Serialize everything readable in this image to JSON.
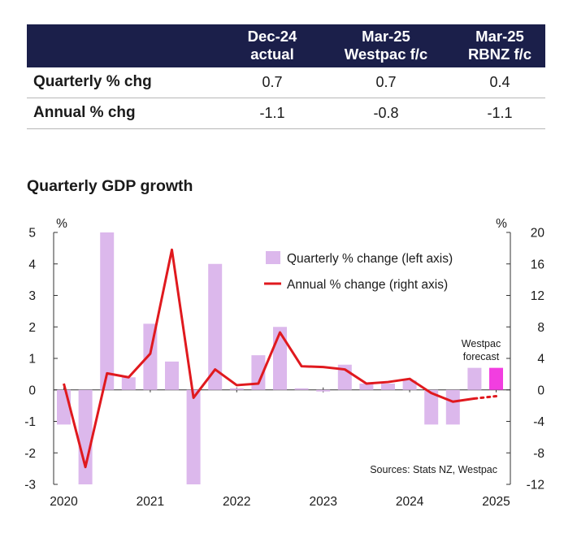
{
  "table": {
    "headers": [
      {
        "line1": "Dec-24",
        "line2": "actual"
      },
      {
        "line1": "Mar-25",
        "line2": "Westpac f/c"
      },
      {
        "line1": "Mar-25",
        "line2": "RBNZ f/c"
      }
    ],
    "rows": [
      {
        "label": "Quarterly % chg",
        "values": [
          "0.7",
          "0.7",
          "0.4"
        ]
      },
      {
        "label": "Annual % chg",
        "values": [
          "-1.1",
          "-0.8",
          "-1.1"
        ]
      }
    ]
  },
  "chart_data": {
    "type": "bar+line",
    "title": "Quarterly GDP growth",
    "left_axis": {
      "unit": "%",
      "ylim": [
        -3,
        5
      ],
      "ticks": [
        "5",
        "4",
        "3",
        "2",
        "1",
        "0",
        "-1",
        "-2",
        "-3"
      ]
    },
    "right_axis": {
      "unit": "%",
      "ylim": [
        -12,
        20
      ],
      "ticks": [
        "20",
        "16",
        "12",
        "8",
        "4",
        "0",
        "-4",
        "-8",
        "-12"
      ]
    },
    "x_ticks": [
      "2020",
      "2021",
      "2022",
      "2023",
      "2024",
      "2025"
    ],
    "quarters": [
      "Mar-20",
      "Jun-20",
      "Sep-20",
      "Dec-20",
      "Mar-21",
      "Jun-21",
      "Sep-21",
      "Dec-21",
      "Mar-22",
      "Jun-22",
      "Sep-22",
      "Dec-22",
      "Mar-23",
      "Jun-23",
      "Sep-23",
      "Dec-23",
      "Mar-24",
      "Jun-24",
      "Sep-24",
      "Dec-24",
      "Mar-25"
    ],
    "series": [
      {
        "name": "Quarterly % change (left axis)",
        "axis": "left",
        "kind": "bar",
        "color": "#dcb8ec",
        "values": [
          -1.1,
          -3.0,
          5.0,
          0.4,
          2.1,
          0.9,
          -3.0,
          4.0,
          0.05,
          1.1,
          2.0,
          0.05,
          -0.05,
          0.8,
          0.2,
          0.2,
          0.3,
          -1.1,
          -1.1,
          0.7,
          null
        ]
      },
      {
        "name": "Annual % change (right axis)",
        "axis": "right",
        "kind": "line",
        "color": "#e0191e",
        "values": [
          0.8,
          -9.8,
          2.1,
          1.6,
          4.6,
          17.8,
          -1.0,
          2.6,
          0.6,
          0.8,
          7.3,
          3.0,
          2.9,
          2.6,
          0.8,
          1.0,
          1.4,
          -0.4,
          -1.5,
          -1.1,
          null
        ]
      },
      {
        "name": "Westpac forecast",
        "kind": "forecast",
        "color": "#f23ee0",
        "line_color": "#e0191e",
        "quarter": "Mar-25",
        "bar_value": 0.7,
        "annual_value": -0.8
      }
    ],
    "annotations": {
      "forecast_label_1": "Westpac",
      "forecast_label_2": "forecast",
      "source": "Sources: Stats NZ, Westpac"
    }
  }
}
